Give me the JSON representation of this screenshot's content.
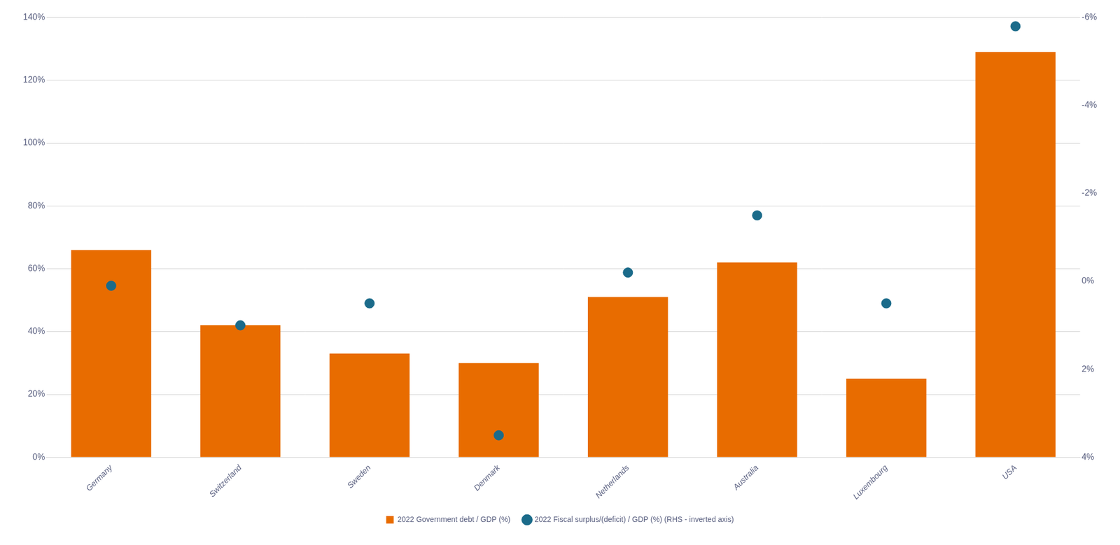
{
  "chart_data": {
    "type": "bar",
    "categories": [
      "Germany",
      "Switzerland",
      "Sweden",
      "Denmark",
      "Netherlands",
      "Australia",
      "Luxembourg",
      "USA"
    ],
    "series": [
      {
        "name": "2022 Government debt / GDP (%)",
        "type": "bar",
        "color": "#E86C00",
        "values": [
          66,
          42,
          33,
          30,
          51,
          62,
          25,
          129
        ]
      },
      {
        "name": "2022 Fiscal surplus/(deficit) / GDP (%) (RHS - inverted axis)",
        "type": "scatter",
        "marker": "circle",
        "color": "#1B6B8A",
        "axis": "y2",
        "values": [
          0.1,
          1.0,
          0.5,
          3.5,
          -0.2,
          -1.5,
          0.5,
          -5.8
        ]
      }
    ],
    "ylim": [
      0,
      140
    ],
    "yticks": [
      {
        "value": 0,
        "label": "0%"
      },
      {
        "value": 20,
        "label": "20%"
      },
      {
        "value": 40,
        "label": "40%"
      },
      {
        "value": 60,
        "label": "60%"
      },
      {
        "value": 80,
        "label": "80%"
      },
      {
        "value": 100,
        "label": "100%"
      },
      {
        "value": 120,
        "label": "120%"
      },
      {
        "value": 140,
        "label": "140%"
      }
    ],
    "y2lim": [
      4,
      -6
    ],
    "y2ticks": [
      {
        "value": -6,
        "label": "-6%"
      },
      {
        "value": -4,
        "label": "-4%"
      },
      {
        "value": -2,
        "label": "-2%"
      },
      {
        "value": 0,
        "label": "0%"
      },
      {
        "value": 2,
        "label": "2%"
      },
      {
        "value": 4,
        "label": "4%"
      }
    ],
    "grid": true,
    "legend": "bottom"
  }
}
